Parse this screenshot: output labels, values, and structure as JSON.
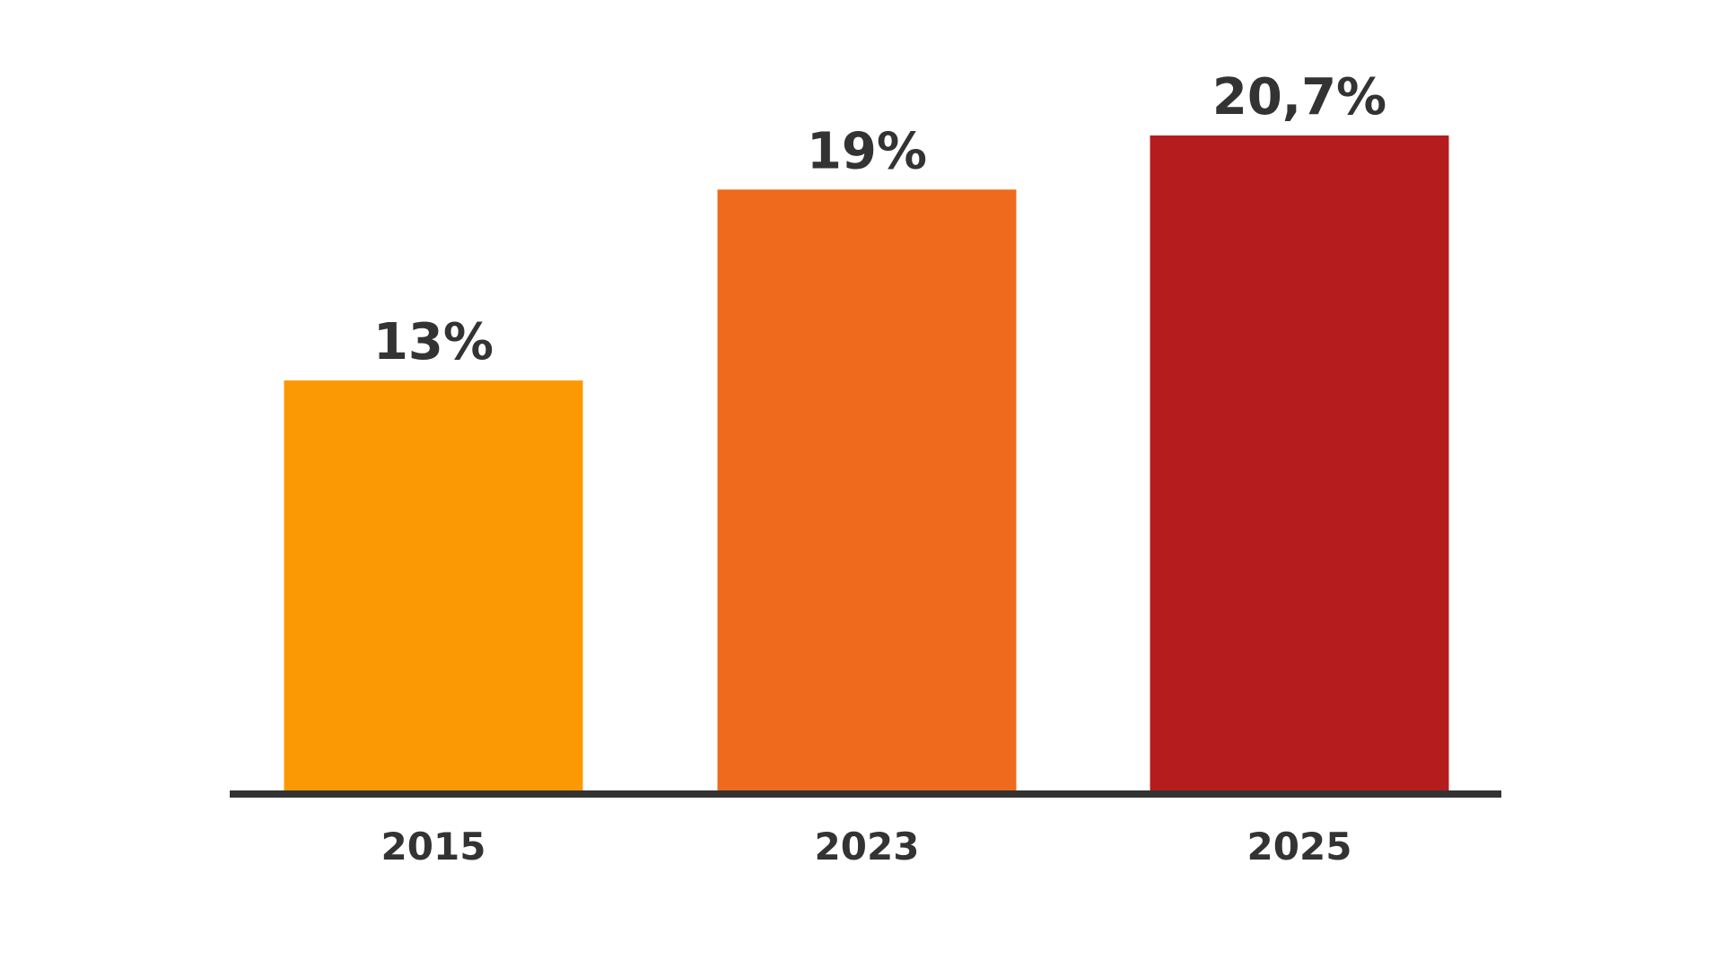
{
  "chart_data": {
    "type": "bar",
    "categories": [
      "2015",
      "2023",
      "2025"
    ],
    "values": [
      13,
      19,
      20.7
    ],
    "value_labels": [
      "13%",
      "19%",
      "20,7%"
    ],
    "colors": [
      "#fb9904",
      "#ef6a1c",
      "#b51c1d"
    ],
    "axis_color": "#333333",
    "title": "",
    "xlabel": "",
    "ylabel": "",
    "ylim": [
      0,
      20.7
    ],
    "grid": false,
    "legend": "none"
  }
}
